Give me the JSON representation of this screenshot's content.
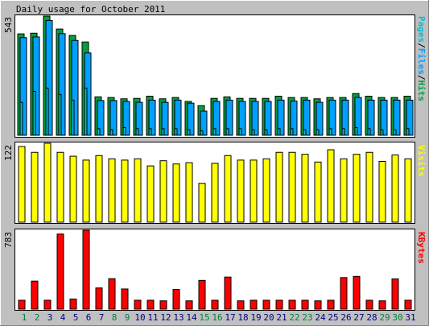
{
  "colors": {
    "background": "#c0c0c0",
    "panel": "#ffffff",
    "border": "#000000",
    "hits": "#00a040",
    "files": "#00a0ff",
    "pages": "#00c0d0",
    "visits": "#ffff00",
    "kbytes": "#ff0000",
    "weekend_label": "#008040",
    "weekday_label": "#000080"
  },
  "chart_data": [
    {
      "type": "bar",
      "title": "Daily usage for October 2011",
      "ymax_label": "543",
      "legend": [
        "Pages",
        "Files",
        "Hits"
      ],
      "categories": [
        "1",
        "2",
        "3",
        "4",
        "5",
        "6",
        "7",
        "8",
        "9",
        "10",
        "11",
        "12",
        "13",
        "14",
        "15",
        "16",
        "17",
        "18",
        "19",
        "20",
        "21",
        "22",
        "23",
        "24",
        "25",
        "26",
        "27",
        "28",
        "29",
        "30",
        "31"
      ],
      "weekend_days": [
        "1",
        "2",
        "8",
        "9",
        "15",
        "16",
        "22",
        "23",
        "29",
        "30"
      ],
      "ylim": [
        0,
        543
      ],
      "series": [
        {
          "name": "Hits",
          "values": [
            462,
            465,
            543,
            484,
            455,
            425,
            175,
            172,
            166,
            168,
            178,
            166,
            172,
            154,
            135,
            168,
            175,
            168,
            168,
            168,
            178,
            172,
            172,
            166,
            172,
            172,
            190,
            178,
            172,
            172,
            178
          ]
        },
        {
          "name": "Files",
          "values": [
            445,
            448,
            523,
            463,
            432,
            375,
            158,
            158,
            154,
            150,
            160,
            150,
            160,
            146,
            110,
            154,
            160,
            154,
            154,
            154,
            160,
            156,
            160,
            150,
            160,
            160,
            172,
            160,
            160,
            160,
            160
          ]
        },
        {
          "name": "Pages",
          "values": [
            150,
            200,
            215,
            186,
            160,
            215,
            30,
            25,
            35,
            30,
            30,
            30,
            30,
            25,
            20,
            30,
            30,
            30,
            25,
            25,
            30,
            30,
            25,
            25,
            30,
            30,
            35,
            30,
            25,
            25,
            30
          ]
        }
      ]
    },
    {
      "type": "bar",
      "ymax_label": "122",
      "legend": [
        "Visits"
      ],
      "categories": [
        "1",
        "2",
        "3",
        "4",
        "5",
        "6",
        "7",
        "8",
        "9",
        "10",
        "11",
        "12",
        "13",
        "14",
        "15",
        "16",
        "17",
        "18",
        "19",
        "20",
        "21",
        "22",
        "23",
        "24",
        "25",
        "26",
        "27",
        "28",
        "29",
        "30",
        "31"
      ],
      "ylim": [
        0,
        122
      ],
      "series": [
        {
          "name": "Visits",
          "values": [
            117,
            108,
            122,
            108,
            102,
            96,
            103,
            98,
            96,
            98,
            87,
            95,
            90,
            92,
            60,
            91,
            103,
            96,
            96,
            98,
            108,
            108,
            105,
            93,
            112,
            98,
            105,
            108,
            94,
            104,
            98
          ]
        }
      ]
    },
    {
      "type": "bar",
      "ymax_label": "783",
      "legend": [
        "KBytes"
      ],
      "categories": [
        "1",
        "2",
        "3",
        "4",
        "5",
        "6",
        "7",
        "8",
        "9",
        "10",
        "11",
        "12",
        "13",
        "14",
        "15",
        "16",
        "17",
        "18",
        "19",
        "20",
        "21",
        "22",
        "23",
        "24",
        "25",
        "26",
        "27",
        "28",
        "29",
        "30",
        "31"
      ],
      "ylim": [
        0,
        783
      ],
      "series": [
        {
          "name": "KBytes",
          "values": [
            88,
            278,
            88,
            745,
            100,
            783,
            210,
            302,
            200,
            88,
            88,
            82,
            195,
            82,
            285,
            88,
            318,
            82,
            88,
            88,
            88,
            88,
            88,
            82,
            88,
            313,
            325,
            88,
            82,
            300,
            88
          ]
        }
      ]
    }
  ]
}
